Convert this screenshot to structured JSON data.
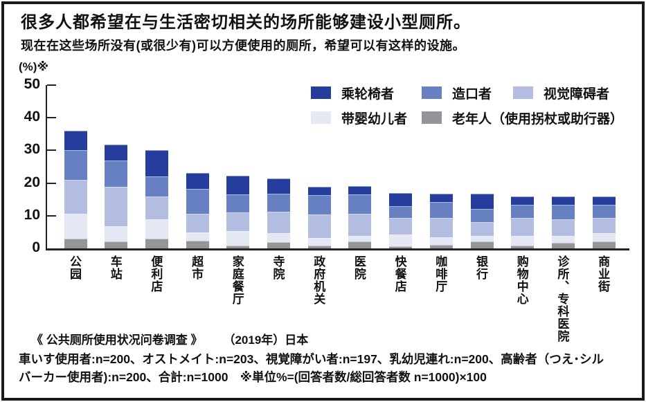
{
  "title": "很多人都希望在与生活密切相关的场所能够建设小型厕所。",
  "subtitle": "现在在这些场所没有(或很少有)可以方便使用的厕所，希望可以有这样的设施。",
  "unit_label": "(%)※",
  "source": {
    "quote": "《 公共厕所使用状况问卷调查 》",
    "year_country": "（2019年）日本"
  },
  "notes": {
    "line1": "車いす使用者:n=200、オストメイト:n=203、視覚障がい者:n=197、乳幼児連れ:n=200、高齢者（つえ･シル",
    "line2": "バーカー使用者):n=200、合計:n=1000　※単位%=(回答者数/総回答者数 n=1000)×100"
  },
  "colors": {
    "wheelchair": "#253d9c",
    "ostomate": "#6780c2",
    "visually_impaired": "#b3bce1",
    "with_infant": "#e4e8f5",
    "elderly": "#949598",
    "axis": "#222222",
    "text": "#111111"
  },
  "chart_data": {
    "type": "bar",
    "stacked": true,
    "title": "很多人都希望在与生活密切相关的场所能够建设小型厕所。",
    "xlabel": "",
    "ylabel": "(%)※",
    "ylim": [
      0,
      50
    ],
    "yticks": [
      0,
      10,
      20,
      30,
      40,
      50
    ],
    "grid": false,
    "legend_position": "top-right-inside",
    "legend_display_order": [
      "乘轮椅者",
      "造口者",
      "视觉障碍者",
      "带婴幼儿者",
      "老年人（使用拐杖或助行器）"
    ],
    "categories": [
      "公园",
      "车站",
      "便利店",
      "超市",
      "家庭餐厅",
      "寺院",
      "政府机关",
      "医院",
      "快餐店",
      "咖啡厅",
      "银行",
      "购物中心",
      "诊所、专科医院",
      "商业街"
    ],
    "series": [
      {
        "name": "老年人（使用拐杖或助行器）",
        "color": "#949598",
        "values": [
          3.0,
          2.1,
          3.0,
          2.3,
          0.9,
          2.0,
          0.8,
          2.1,
          0.7,
          1.1,
          2.2,
          0.8,
          1.8,
          2.2
        ]
      },
      {
        "name": "带婴幼儿者",
        "color": "#e4e8f5",
        "values": [
          7.5,
          4.6,
          5.8,
          2.6,
          4.3,
          2.6,
          2.3,
          1.8,
          3.6,
          2.3,
          1.7,
          3.1,
          2.1,
          2.4
        ]
      },
      {
        "name": "视觉障碍者",
        "color": "#b3bce1",
        "values": [
          10.5,
          12.1,
          7.1,
          5.8,
          5.8,
          6.6,
          7.2,
          6.8,
          5.0,
          5.9,
          4.1,
          5.4,
          5.1,
          4.7
        ]
      },
      {
        "name": "造口者",
        "color": "#6780c2",
        "values": [
          9.0,
          8.2,
          6.2,
          7.6,
          5.6,
          5.6,
          6.1,
          5.9,
          3.7,
          4.8,
          4.0,
          4.1,
          4.4,
          4.1
        ]
      },
      {
        "name": "乘轮椅者",
        "color": "#253d9c",
        "values": [
          6.0,
          4.8,
          7.9,
          4.7,
          5.7,
          4.5,
          2.5,
          2.4,
          4.0,
          2.7,
          4.8,
          2.5,
          2.6,
          2.6
        ]
      }
    ],
    "totals": [
      36.0,
      31.8,
      30.0,
      23.0,
      22.3,
      21.3,
      18.9,
      19.0,
      17.0,
      16.8,
      16.8,
      15.9,
      16.0,
      16.0
    ]
  }
}
